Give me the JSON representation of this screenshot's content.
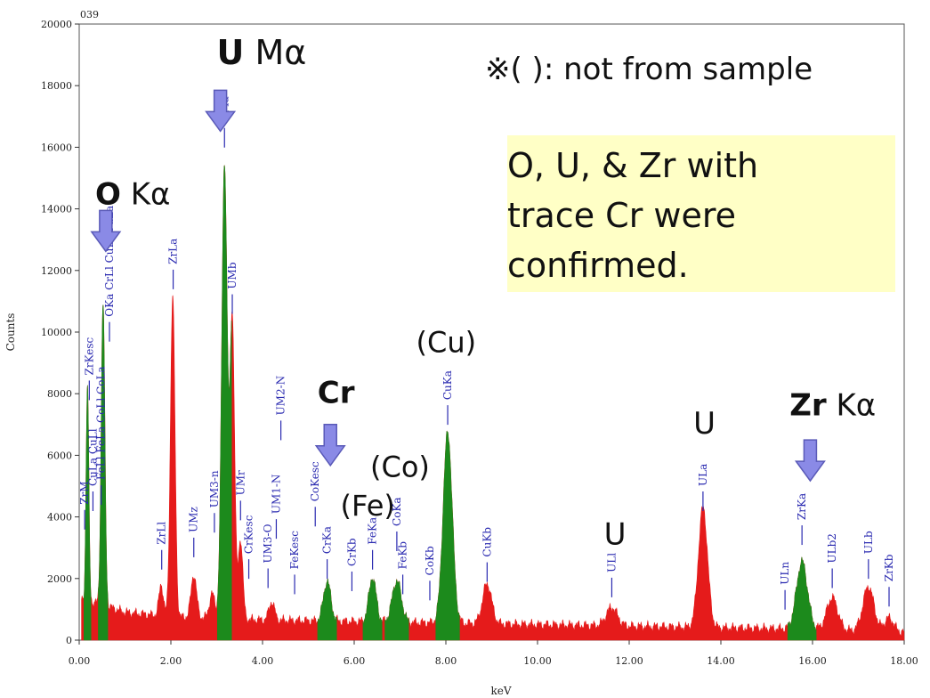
{
  "chart_data": {
    "type": "area",
    "title": "039",
    "xlabel": "keV",
    "ylabel": "Counts",
    "xlim": [
      0,
      18
    ],
    "ylim": [
      0,
      20000
    ],
    "x_ticks": [
      "0.00",
      "2.00",
      "4.00",
      "6.00",
      "8.00",
      "10.00",
      "12.00",
      "14.00",
      "16.00",
      "18.00"
    ],
    "y_ticks": [
      "0",
      "2000",
      "4000",
      "6000",
      "8000",
      "10000",
      "12000",
      "14000",
      "16000",
      "18000",
      "20000"
    ],
    "background": [
      [
        0,
        1300
      ],
      [
        0.4,
        1200
      ],
      [
        1.0,
        900
      ],
      [
        2.0,
        750
      ],
      [
        3.0,
        700
      ],
      [
        4.0,
        650
      ],
      [
        6.0,
        600
      ],
      [
        8.0,
        550
      ],
      [
        10.0,
        500
      ],
      [
        12.0,
        450
      ],
      [
        14.0,
        400
      ],
      [
        16.0,
        350
      ],
      [
        18.0,
        250
      ]
    ],
    "green_peaks": [
      {
        "element": "OKa",
        "x": 0.52,
        "y": 9800,
        "w": 0.04
      },
      {
        "element": "ZrM",
        "x": 0.18,
        "y": 7000,
        "w": 0.03
      },
      {
        "element": "UMa",
        "x": 3.17,
        "y": 14800,
        "w": 0.06
      },
      {
        "element": "CrKa",
        "x": 5.41,
        "y": 1300,
        "w": 0.08
      },
      {
        "element": "FeKa",
        "x": 6.4,
        "y": 1450,
        "w": 0.08
      },
      {
        "element": "CoKa",
        "x": 6.93,
        "y": 1350,
        "w": 0.1
      },
      {
        "element": "CuKa",
        "x": 8.04,
        "y": 6200,
        "w": 0.1
      },
      {
        "element": "ZrKa",
        "x": 15.77,
        "y": 2200,
        "w": 0.12
      }
    ],
    "red_peaks": [
      {
        "element": "ZrLa",
        "x": 2.04,
        "y": 10400,
        "w": 0.05
      },
      {
        "element": "UMb",
        "x": 3.34,
        "y": 9800,
        "w": 0.05
      },
      {
        "element": "UMz",
        "x": 2.5,
        "y": 1400,
        "w": 0.06
      },
      {
        "element": "UM3-n",
        "x": 2.9,
        "y": 800,
        "w": 0.06
      },
      {
        "element": "UMr",
        "x": 3.52,
        "y": 2600,
        "w": 0.05
      },
      {
        "element": "ZrLl",
        "x": 1.79,
        "y": 1000,
        "w": 0.05
      },
      {
        "element": "UM2-N",
        "x": 4.2,
        "y": 600,
        "w": 0.06
      },
      {
        "element": "CuKb",
        "x": 8.9,
        "y": 1300,
        "w": 0.1
      },
      {
        "element": "UL1",
        "x": 11.62,
        "y": 600,
        "w": 0.12
      },
      {
        "element": "ULa",
        "x": 13.61,
        "y": 3900,
        "w": 0.1
      },
      {
        "element": "ULb2",
        "x": 16.43,
        "y": 1050,
        "w": 0.12
      },
      {
        "element": "ULb",
        "x": 17.22,
        "y": 1450,
        "w": 0.12
      },
      {
        "element": "ZrKb",
        "x": 17.67,
        "y": 450,
        "w": 0.1
      }
    ],
    "peak_labels": [
      {
        "text": "ZrM",
        "x": 0.12,
        "y": 4400
      },
      {
        "text": "ZrKesc",
        "x": 0.22,
        "y": 8600
      },
      {
        "text": "CuLa CuLl",
        "x": 0.3,
        "y": 5000
      },
      {
        "text": "FeLl FeLa CoLl CoLa",
        "x": 0.48,
        "y": 5200
      },
      {
        "text": "OKa CrLl CuLl CuLa",
        "x": 0.66,
        "y": 10500
      },
      {
        "text": "ZrLl",
        "x": 1.8,
        "y": 3100
      },
      {
        "text": "ZrLa",
        "x": 2.05,
        "y": 12200
      },
      {
        "text": "UMz",
        "x": 2.5,
        "y": 3500
      },
      {
        "text": "UM3-n",
        "x": 2.95,
        "y": 4300
      },
      {
        "text": "UMa",
        "x": 3.17,
        "y": 16800
      },
      {
        "text": "UMb",
        "x": 3.34,
        "y": 11400
      },
      {
        "text": "UMr",
        "x": 3.52,
        "y": 4700
      },
      {
        "text": "CrKesc",
        "x": 3.7,
        "y": 2800
      },
      {
        "text": "UM3-O",
        "x": 4.12,
        "y": 2500
      },
      {
        "text": "UM1-N",
        "x": 4.3,
        "y": 4100
      },
      {
        "text": "UM2-N",
        "x": 4.4,
        "y": 7300
      },
      {
        "text": "FeKesc",
        "x": 4.7,
        "y": 2300
      },
      {
        "text": "CoKesc",
        "x": 5.15,
        "y": 4500
      },
      {
        "text": "CrKa",
        "x": 5.41,
        "y": 2800
      },
      {
        "text": "CrKb",
        "x": 5.95,
        "y": 2400
      },
      {
        "text": "FeKa",
        "x": 6.4,
        "y": 3100
      },
      {
        "text": "CoKa",
        "x": 6.93,
        "y": 3700
      },
      {
        "text": "FeKb",
        "x": 7.06,
        "y": 2300
      },
      {
        "text": "CoKb",
        "x": 7.65,
        "y": 2100
      },
      {
        "text": "CuKa",
        "x": 8.04,
        "y": 7800
      },
      {
        "text": "CuKb",
        "x": 8.9,
        "y": 2700
      },
      {
        "text": "ULl",
        "x": 11.62,
        "y": 2200
      },
      {
        "text": "ULa",
        "x": 13.61,
        "y": 5000
      },
      {
        "text": "ULn",
        "x": 15.4,
        "y": 1800
      },
      {
        "text": "ZrKa",
        "x": 15.77,
        "y": 3900
      },
      {
        "text": "ULb2",
        "x": 16.43,
        "y": 2500
      },
      {
        "text": "ULb",
        "x": 17.22,
        "y": 2800
      },
      {
        "text": "ZrKb",
        "x": 17.67,
        "y": 1900
      }
    ],
    "annotations": [
      {
        "id": "u-ma",
        "parts": [
          {
            "t": "U",
            "bold": true
          },
          {
            "t": " Mα",
            "bold": false
          }
        ],
        "x": 3.0,
        "y": 18700,
        "size": 38,
        "arrow": true,
        "arrow_x": 3.08,
        "arrow_y": 17850
      },
      {
        "id": "o-ka",
        "parts": [
          {
            "t": "O",
            "bold": true
          },
          {
            "t": " Kα",
            "bold": false
          }
        ],
        "x": 0.35,
        "y": 14150,
        "size": 34,
        "arrow": true,
        "arrow_x": 0.58,
        "arrow_y": 13950
      },
      {
        "id": "cr",
        "parts": [
          {
            "t": "Cr",
            "bold": true
          }
        ],
        "x": 5.2,
        "y": 7700,
        "size": 34,
        "arrow": true,
        "arrow_x": 5.48,
        "arrow_y": 7000
      },
      {
        "id": "zr-ka",
        "parts": [
          {
            "t": "Zr",
            "bold": true
          },
          {
            "t": " Kα",
            "bold": false
          }
        ],
        "x": 15.5,
        "y": 7300,
        "size": 34,
        "arrow": true,
        "arrow_x": 15.95,
        "arrow_y": 6500
      },
      {
        "id": "cu",
        "parts": [
          {
            "t": "(Cu)",
            "bold": false
          }
        ],
        "x": 7.35,
        "y": 9350,
        "size": 32,
        "arrow": false
      },
      {
        "id": "co",
        "parts": [
          {
            "t": "(Co)",
            "bold": false
          }
        ],
        "x": 6.35,
        "y": 5300,
        "size": 32,
        "arrow": false
      },
      {
        "id": "fe",
        "parts": [
          {
            "t": "(Fe)",
            "bold": false
          }
        ],
        "x": 5.7,
        "y": 4050,
        "size": 32,
        "arrow": false
      },
      {
        "id": "u1",
        "parts": [
          {
            "t": "U",
            "bold": false
          }
        ],
        "x": 13.4,
        "y": 6700,
        "size": 34,
        "arrow": false
      },
      {
        "id": "u2",
        "parts": [
          {
            "t": "U",
            "bold": false
          }
        ],
        "x": 11.45,
        "y": 3100,
        "size": 34,
        "arrow": false
      }
    ]
  },
  "note": "※( ): not from sample",
  "summary_lines": [
    " O, U, & Zr with",
    "trace Cr were",
    "confirmed."
  ],
  "colors": {
    "red": "#e51b1b",
    "green": "#1c8a1c",
    "arrow": "#8a8ae6",
    "label": "#2a2ab0",
    "box": "#ffffc6"
  }
}
